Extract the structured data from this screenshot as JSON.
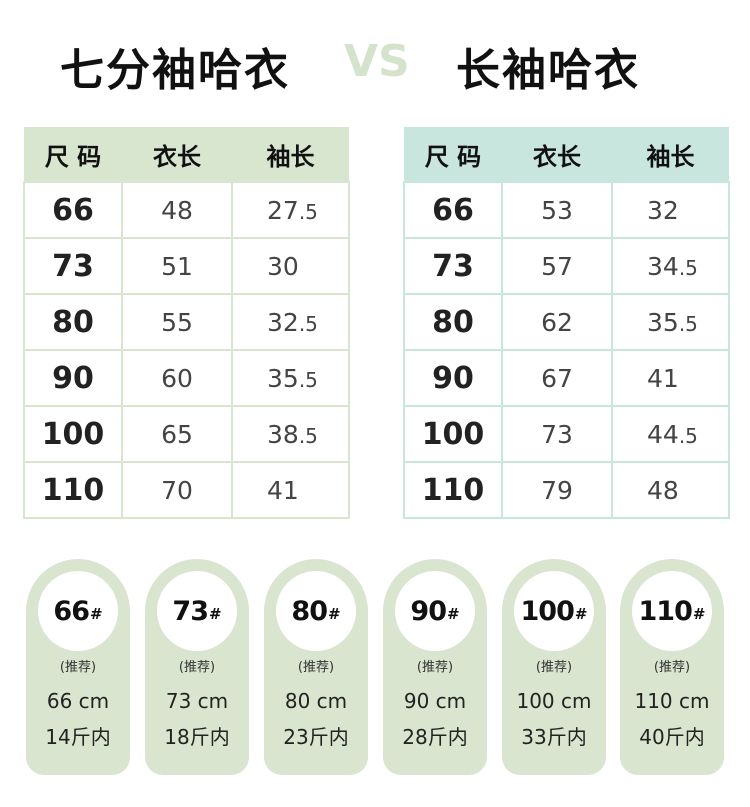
{
  "title": {
    "left": "七分袖哈衣",
    "vs": "VS",
    "right": "长袖哈衣"
  },
  "tables": [
    {
      "headers": [
        "尺 码",
        "衣长",
        "袖长"
      ],
      "rows": [
        [
          "66",
          "48",
          "27.5"
        ],
        [
          "73",
          "51",
          "30"
        ],
        [
          "80",
          "55",
          "32.5"
        ],
        [
          "90",
          "60",
          "35.5"
        ],
        [
          "100",
          "65",
          "38.5"
        ],
        [
          "110",
          "70",
          "41"
        ]
      ]
    },
    {
      "headers": [
        "尺 码",
        "衣长",
        "袖长"
      ],
      "rows": [
        [
          "66",
          "53",
          "32"
        ],
        [
          "73",
          "57",
          "34.5"
        ],
        [
          "80",
          "62",
          "35.5"
        ],
        [
          "90",
          "67",
          "41"
        ],
        [
          "100",
          "73",
          "44.5"
        ],
        [
          "110",
          "79",
          "48"
        ]
      ]
    }
  ],
  "tags": [
    {
      "size": "66",
      "mark": "#",
      "rec": "(推荐)",
      "cm": "66 cm",
      "weight": "14斤内"
    },
    {
      "size": "73",
      "mark": "#",
      "rec": "(推荐)",
      "cm": "73 cm",
      "weight": "18斤内"
    },
    {
      "size": "80",
      "mark": "#",
      "rec": "(推荐)",
      "cm": "80 cm",
      "weight": "23斤内"
    },
    {
      "size": "90",
      "mark": "#",
      "rec": "(推荐)",
      "cm": "90 cm",
      "weight": "28斤内"
    },
    {
      "size": "100",
      "mark": "#",
      "rec": "(推荐)",
      "cm": "100 cm",
      "weight": "33斤内"
    },
    {
      "size": "110",
      "mark": "#",
      "rec": "(推荐)",
      "cm": "110 cm",
      "weight": "40斤内"
    }
  ],
  "colors": {
    "left_header": "#d8e6cf",
    "right_header": "#c9e6de",
    "tag_bg": "#d9e5cf",
    "vs": "#d5e3cc"
  }
}
